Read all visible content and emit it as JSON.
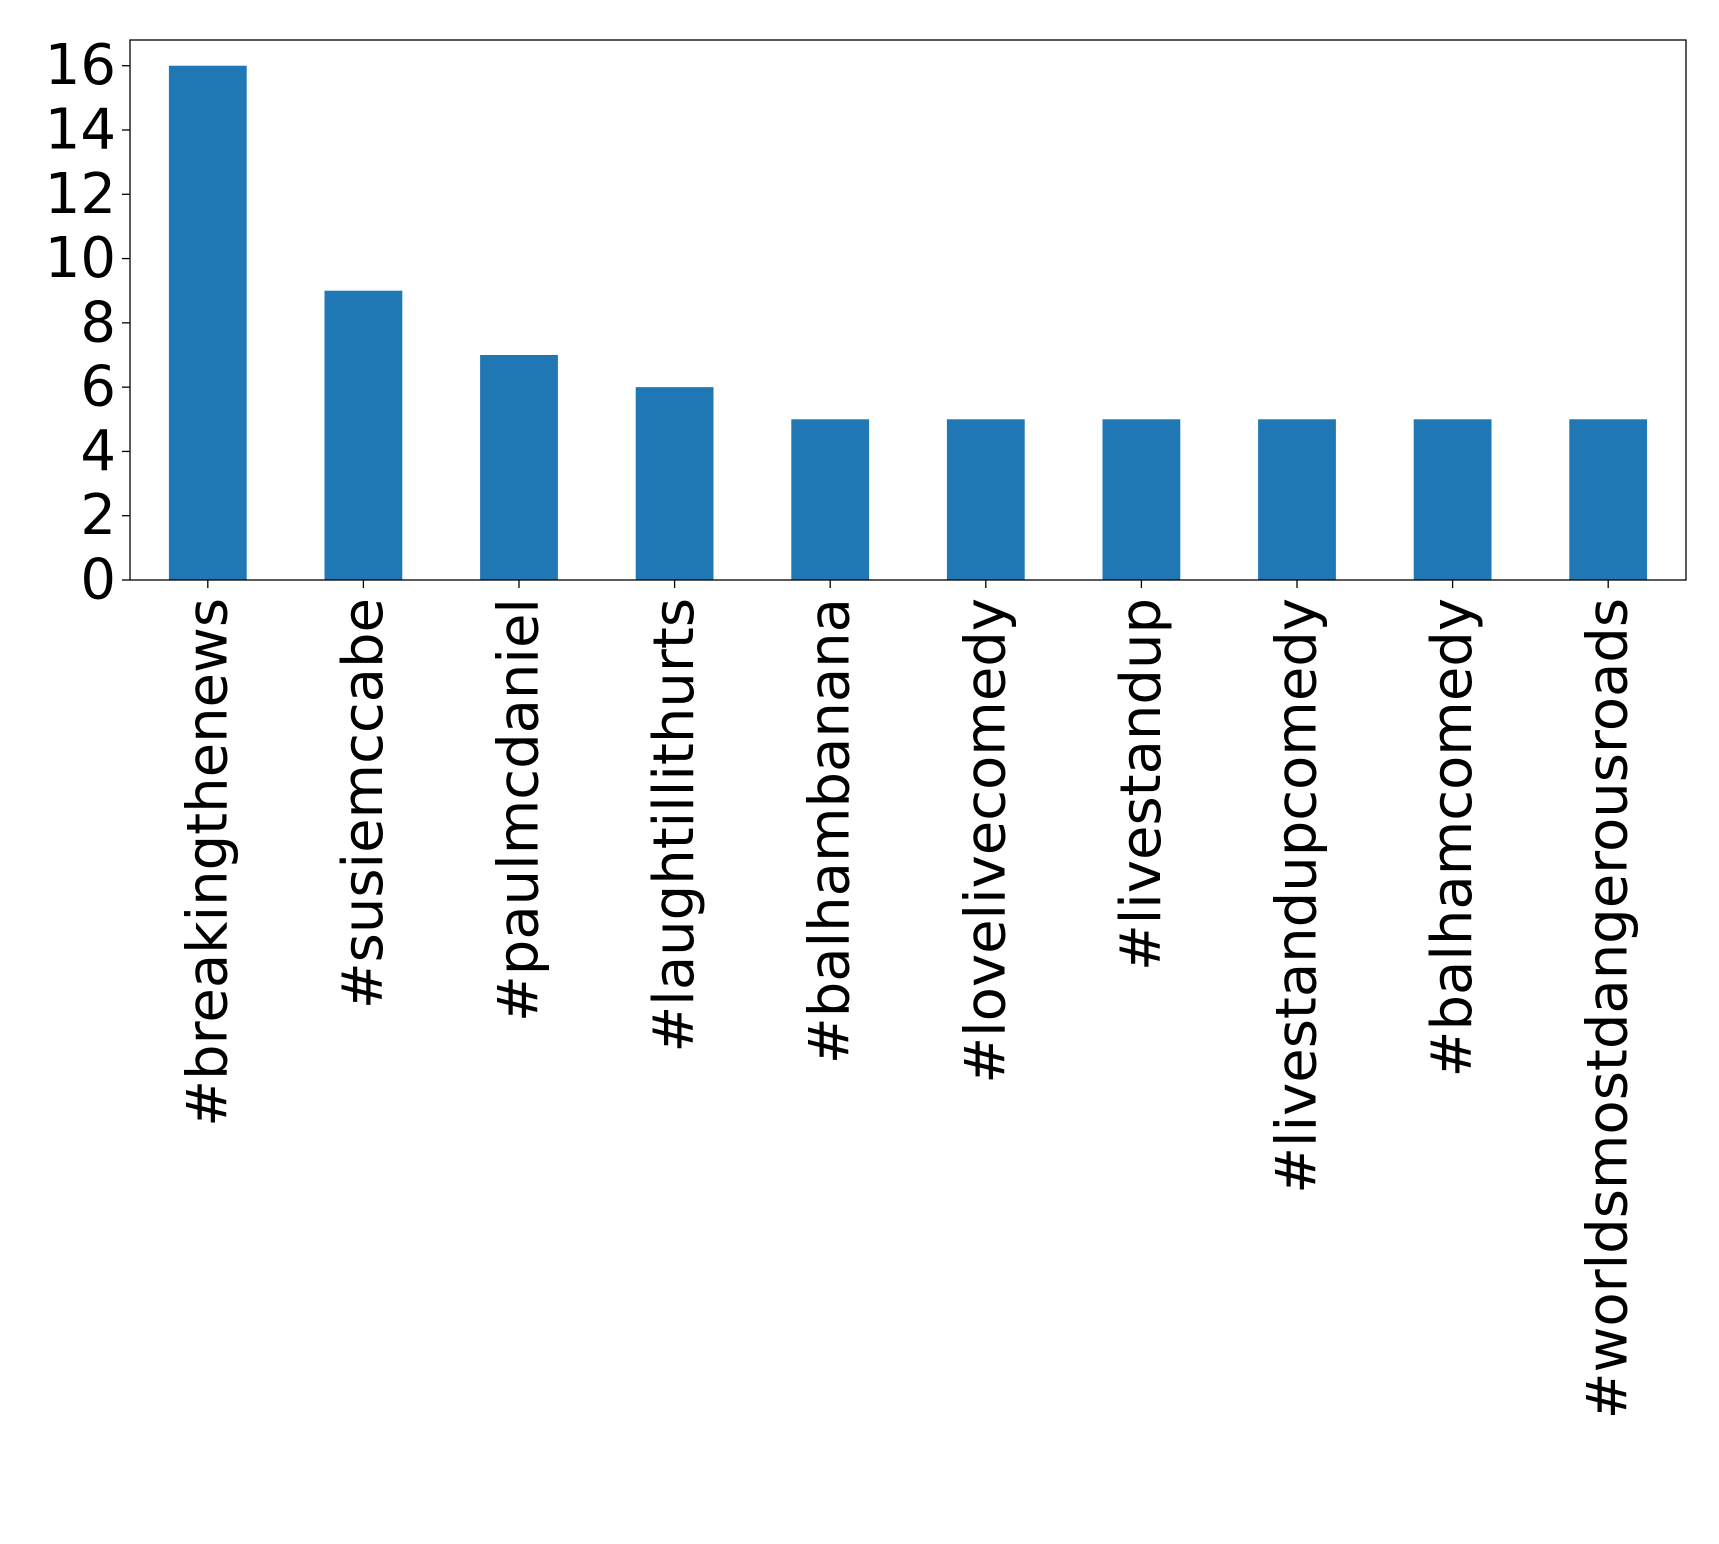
{
  "chart_data": {
    "type": "bar",
    "title": "",
    "xlabel": "",
    "ylabel": "",
    "categories": [
      "#breakingthenews",
      "#susiemccabe",
      "#paulmcdaniel",
      "#laughtillithurts",
      "#balhambanana",
      "#lovelivecomedy",
      "#livestandup",
      "#livestandupcomedy",
      "#balhamcomedy",
      "#worldsmostdangerousroads"
    ],
    "values": [
      16,
      9,
      7,
      6,
      5,
      5,
      5,
      5,
      5,
      5
    ],
    "ylim": [
      0,
      16.8
    ],
    "yticks": [
      "0",
      "2",
      "4",
      "6",
      "8",
      "10",
      "12",
      "14",
      "16"
    ],
    "ytick_values": [
      0,
      2,
      4,
      6,
      8,
      10,
      12,
      14,
      16
    ],
    "bar_color": "#1f77b4",
    "grid": false,
    "legend": "none"
  }
}
